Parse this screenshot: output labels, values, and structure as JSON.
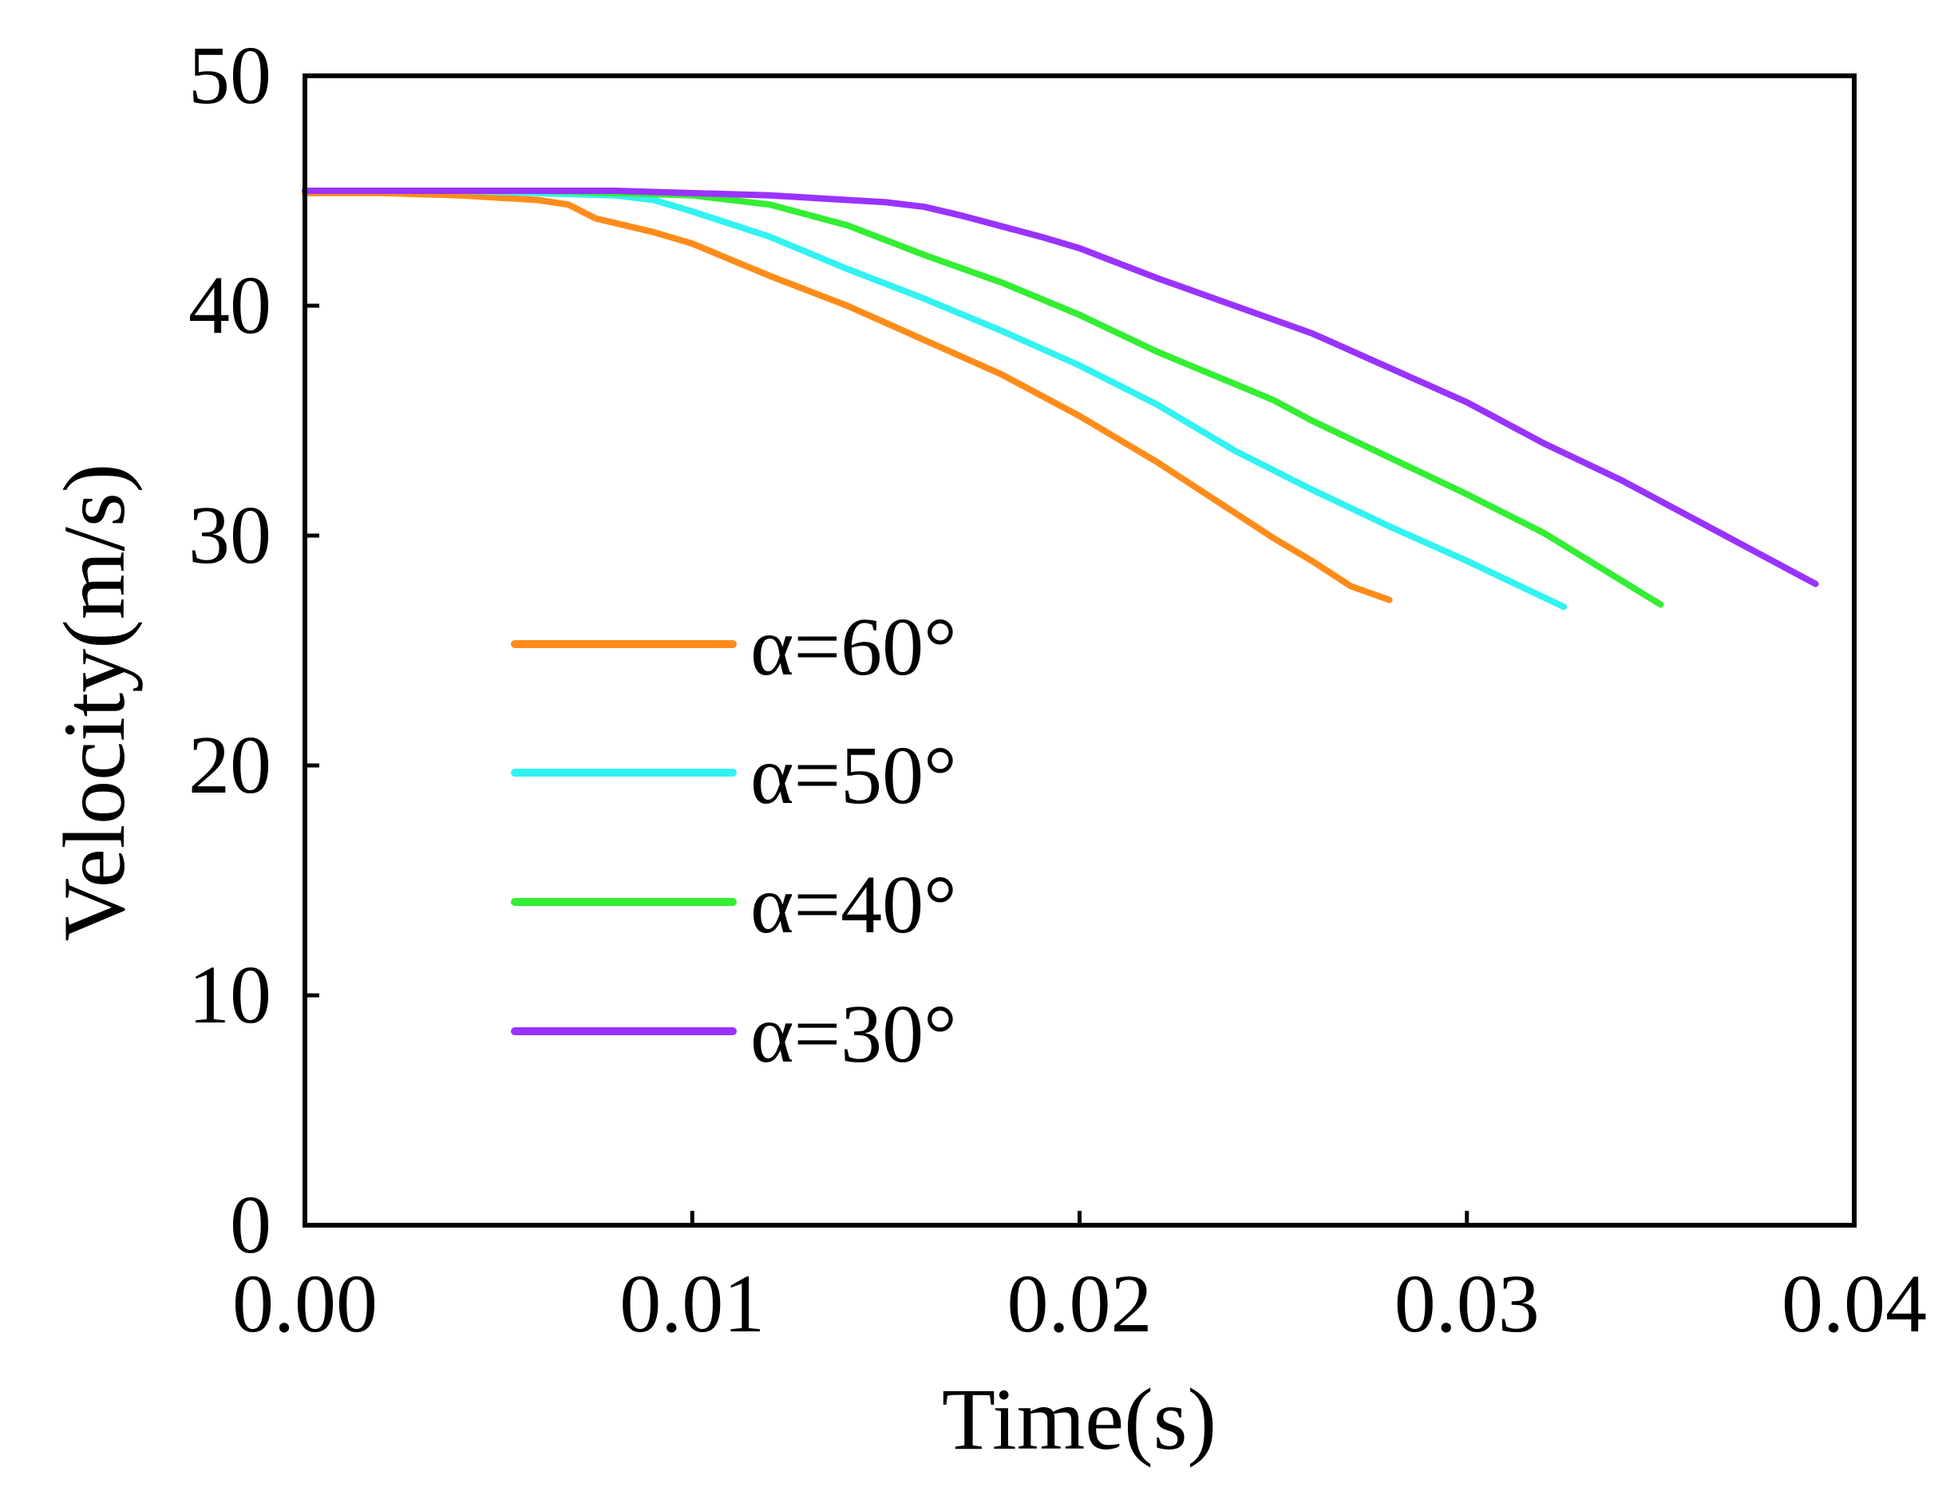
{
  "chart_data": {
    "type": "line",
    "title": "",
    "xlabel": "Time(s)",
    "ylabel": "Velocity(m/s)",
    "xlim": [
      0,
      0.04
    ],
    "ylim": [
      0,
      50
    ],
    "grid": false,
    "legend_position": "center-left",
    "x_ticks": [
      "0.00",
      "0.01",
      "0.02",
      "0.03",
      "0.04"
    ],
    "y_ticks": [
      "0",
      "10",
      "20",
      "30",
      "40",
      "50"
    ],
    "series": [
      {
        "name": "α=60°",
        "color": "#FF8C1A",
        "x": [
          0,
          0.002,
          0.004,
          0.006,
          0.0068,
          0.0075,
          0.008,
          0.009,
          0.01,
          0.011,
          0.012,
          0.014,
          0.016,
          0.018,
          0.02,
          0.022,
          0.024,
          0.025,
          0.026,
          0.027,
          0.028
        ],
        "y": [
          44.9,
          44.9,
          44.8,
          44.6,
          44.4,
          43.8,
          43.6,
          43.2,
          42.7,
          42.0,
          41.3,
          40.0,
          38.5,
          37.0,
          35.2,
          33.2,
          31.0,
          29.9,
          28.9,
          27.8,
          27.2
        ]
      },
      {
        "name": "α=50°",
        "color": "#33F2F2",
        "x": [
          0,
          0.004,
          0.008,
          0.009,
          0.01,
          0.012,
          0.014,
          0.016,
          0.018,
          0.02,
          0.022,
          0.024,
          0.026,
          0.028,
          0.03,
          0.0325
        ],
        "y": [
          45.0,
          45.0,
          44.8,
          44.6,
          44.1,
          43.0,
          41.6,
          40.3,
          38.9,
          37.4,
          35.7,
          33.7,
          32.0,
          30.4,
          28.9,
          26.9
        ]
      },
      {
        "name": "α=40°",
        "color": "#33EE33",
        "x": [
          0,
          0.006,
          0.01,
          0.012,
          0.014,
          0.016,
          0.018,
          0.02,
          0.022,
          0.024,
          0.025,
          0.026,
          0.028,
          0.03,
          0.032,
          0.035
        ],
        "y": [
          45.0,
          45.0,
          44.8,
          44.4,
          43.5,
          42.2,
          41.0,
          39.6,
          38.0,
          36.6,
          35.9,
          35.0,
          33.4,
          31.8,
          30.1,
          27.0
        ]
      },
      {
        "name": "α=30°",
        "color": "#9933FF",
        "x": [
          0,
          0.008,
          0.012,
          0.015,
          0.016,
          0.017,
          0.019,
          0.02,
          0.022,
          0.024,
          0.026,
          0.028,
          0.03,
          0.032,
          0.034,
          0.036,
          0.039
        ],
        "y": [
          45.0,
          45.0,
          44.8,
          44.5,
          44.3,
          43.9,
          43.0,
          42.5,
          41.2,
          40.0,
          38.8,
          37.3,
          35.8,
          34.0,
          32.4,
          30.6,
          27.9
        ]
      }
    ]
  }
}
